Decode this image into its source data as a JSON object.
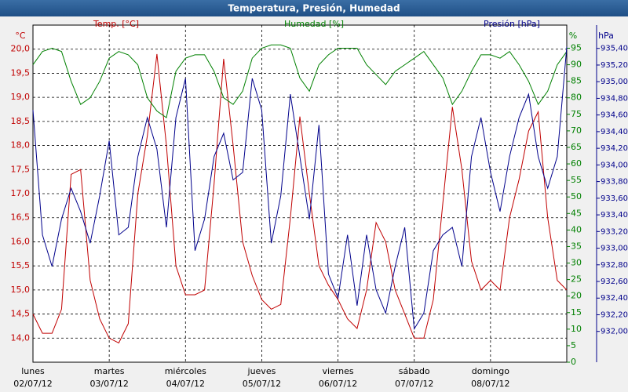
{
  "chart_data": {
    "type": "line",
    "title": "Temperatura, Presión, Humedad",
    "y_unit": "°C",
    "y2_unit": "%",
    "y3_unit": "hPa",
    "x": [
      0,
      3,
      6,
      9,
      12,
      15,
      18,
      21,
      24,
      27,
      30,
      33,
      36,
      39,
      42,
      45,
      48,
      51,
      54,
      57,
      60,
      63,
      66,
      69,
      72,
      75,
      78,
      81,
      84,
      87,
      90,
      93,
      96,
      99,
      102,
      105,
      108,
      111,
      114,
      117,
      120,
      123,
      126,
      129,
      132,
      135,
      138,
      141,
      144,
      147,
      150,
      153,
      156,
      159,
      162,
      165,
      168
    ],
    "xlim": [
      0,
      168
    ],
    "xticks": [
      {
        "value": 0,
        "label": "lunes",
        "date": "02/07/12"
      },
      {
        "value": 24,
        "label": "martes",
        "date": "03/07/12"
      },
      {
        "value": 48,
        "label": "miércoles",
        "date": "04/07/12"
      },
      {
        "value": 72,
        "label": "jueves",
        "date": "05/07/12"
      },
      {
        "value": 96,
        "label": "viernes",
        "date": "06/07/12"
      },
      {
        "value": 120,
        "label": "sábado",
        "date": "07/07/12"
      },
      {
        "value": 144,
        "label": "domingo",
        "date": "08/07/12"
      }
    ],
    "ylim": [
      13.5,
      20.5
    ],
    "yticks": [
      {
        "value": 14.0,
        "label": "14,0"
      },
      {
        "value": 14.5,
        "label": "14,5"
      },
      {
        "value": 15.0,
        "label": "15,0"
      },
      {
        "value": 15.5,
        "label": "15,5"
      },
      {
        "value": 16.0,
        "label": "16,0"
      },
      {
        "value": 16.5,
        "label": "16,5"
      },
      {
        "value": 17.0,
        "label": "17,0"
      },
      {
        "value": 17.5,
        "label": "17,5"
      },
      {
        "value": 18.0,
        "label": "18,0"
      },
      {
        "value": 18.5,
        "label": "18,5"
      },
      {
        "value": 19.0,
        "label": "19,0"
      },
      {
        "value": 19.5,
        "label": "19,5"
      },
      {
        "value": 20.0,
        "label": "20,0"
      }
    ],
    "y2lim": [
      0,
      102
    ],
    "y2ticks": [
      0,
      5,
      10,
      15,
      20,
      25,
      30,
      35,
      40,
      45,
      50,
      55,
      60,
      65,
      70,
      75,
      80,
      85,
      90,
      95
    ],
    "y3lim": [
      931.63,
      935.68
    ],
    "y3ticks": [
      {
        "value": 932.0,
        "label": "932,00"
      },
      {
        "value": 932.2,
        "label": "932,20"
      },
      {
        "value": 932.4,
        "label": "932,40"
      },
      {
        "value": 932.6,
        "label": "932,60"
      },
      {
        "value": 932.8,
        "label": "932,80"
      },
      {
        "value": 933.0,
        "label": "933,00"
      },
      {
        "value": 933.2,
        "label": "933,20"
      },
      {
        "value": 933.4,
        "label": "933,40"
      },
      {
        "value": 933.6,
        "label": "933,60"
      },
      {
        "value": 933.8,
        "label": "933,80"
      },
      {
        "value": 934.0,
        "label": "934,00"
      },
      {
        "value": 934.2,
        "label": "934,20"
      },
      {
        "value": 934.4,
        "label": "934,40"
      },
      {
        "value": 934.6,
        "label": "934,60"
      },
      {
        "value": 934.8,
        "label": "934,80"
      },
      {
        "value": 935.0,
        "label": "935,00"
      },
      {
        "value": 935.2,
        "label": "935,20"
      },
      {
        "value": 935.4,
        "label": "935,40"
      }
    ],
    "grid": true,
    "series": [
      {
        "name": "Temp. [°C]",
        "color": "#c00000",
        "axis": "y",
        "values": [
          14.5,
          14.1,
          14.1,
          14.6,
          17.4,
          17.5,
          15.2,
          14.4,
          14.0,
          13.9,
          14.3,
          17.0,
          18.2,
          19.9,
          18.0,
          15.5,
          14.9,
          14.9,
          15.0,
          17.2,
          19.8,
          18.0,
          16.0,
          15.3,
          14.8,
          14.6,
          14.7,
          16.5,
          18.6,
          17.0,
          15.5,
          15.1,
          14.8,
          14.4,
          14.2,
          15.0,
          16.4,
          16.0,
          15.0,
          14.5,
          14.0,
          14.0,
          14.8,
          16.8,
          18.8,
          17.5,
          15.6,
          15.0,
          15.2,
          15.0,
          16.5,
          17.3,
          18.3,
          18.7,
          16.5,
          15.2,
          15.0
        ]
      },
      {
        "name": "Humedad [%]",
        "color": "#008000",
        "axis": "y2",
        "values": [
          90,
          94,
          95,
          94,
          85,
          78,
          80,
          85,
          92,
          94,
          93,
          90,
          80,
          76,
          74,
          88,
          92,
          93,
          93,
          88,
          80,
          78,
          82,
          92,
          95,
          96,
          96,
          95,
          86,
          82,
          90,
          93,
          95,
          95,
          95,
          90,
          87,
          84,
          88,
          90,
          92,
          94,
          90,
          86,
          78,
          82,
          88,
          93,
          93,
          92,
          94,
          90,
          85,
          78,
          82,
          90,
          94
        ]
      },
      {
        "name": "Presión [hPa]",
        "color": "#00008b",
        "axis": "y3",
        "values": [
          934.66,
          933.16,
          932.78,
          933.35,
          933.72,
          933.44,
          933.06,
          933.63,
          934.29,
          933.16,
          933.25,
          934.1,
          934.57,
          934.19,
          933.25,
          934.57,
          935.04,
          932.97,
          933.35,
          934.1,
          934.38,
          933.82,
          933.91,
          935.04,
          934.66,
          933.06,
          933.63,
          934.85,
          934.1,
          933.35,
          934.48,
          932.69,
          932.4,
          933.16,
          932.31,
          933.16,
          932.5,
          932.22,
          932.78,
          933.25,
          932.03,
          932.22,
          932.97,
          933.16,
          933.25,
          932.78,
          934.1,
          934.57,
          933.91,
          933.44,
          934.1,
          934.57,
          934.85,
          934.1,
          933.72,
          934.1,
          935.42
        ]
      }
    ]
  }
}
